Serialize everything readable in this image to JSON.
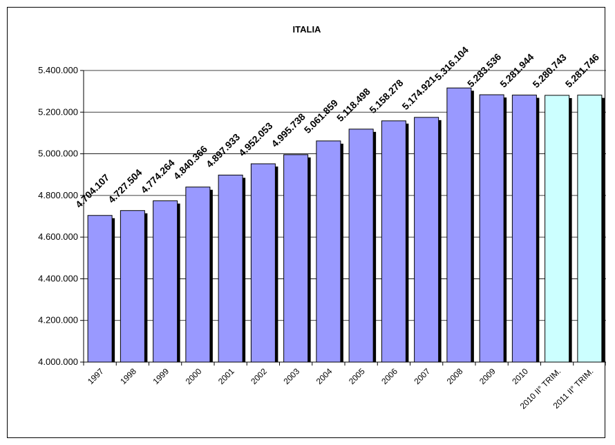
{
  "chart_data": {
    "type": "bar",
    "title": "ITALIA",
    "xlabel": "",
    "ylabel": "",
    "ylim": [
      4000000,
      5400000
    ],
    "ytick_step": 200000,
    "yticks": [
      "4.000.000",
      "4.200.000",
      "4.400.000",
      "4.600.000",
      "4.800.000",
      "5.000.000",
      "5.200.000",
      "5.400.000"
    ],
    "grid": true,
    "legend": "none",
    "categories": [
      "1997",
      "1998",
      "1999",
      "2000",
      "2001",
      "2002",
      "2003",
      "2004",
      "2005",
      "2006",
      "2007",
      "2008",
      "2009",
      "2010",
      "2010 II° TRIM.",
      "2011 II° TRIM."
    ],
    "values": [
      4704107,
      4727504,
      4774264,
      4840366,
      4897933,
      4952053,
      4995738,
      5061859,
      5118498,
      5158278,
      5174921,
      5316104,
      5283536,
      5281944,
      5280743,
      5281746
    ],
    "labels": [
      "4.704.107",
      "4.727.504",
      "4.774.264",
      "4.840.366",
      "4.897.933",
      "4.952.053",
      "4.995.738",
      "5.061.859",
      "5.118.498",
      "5.158.278",
      "5.174.921",
      "5.316.104",
      "5.283.536",
      "5.281.944",
      "5.280.743",
      "5.281.746"
    ],
    "colors": {
      "bar_main": "#9999ff",
      "bar_trim": "#ccffff",
      "shadow": "#000000",
      "grid": "#000000"
    }
  }
}
